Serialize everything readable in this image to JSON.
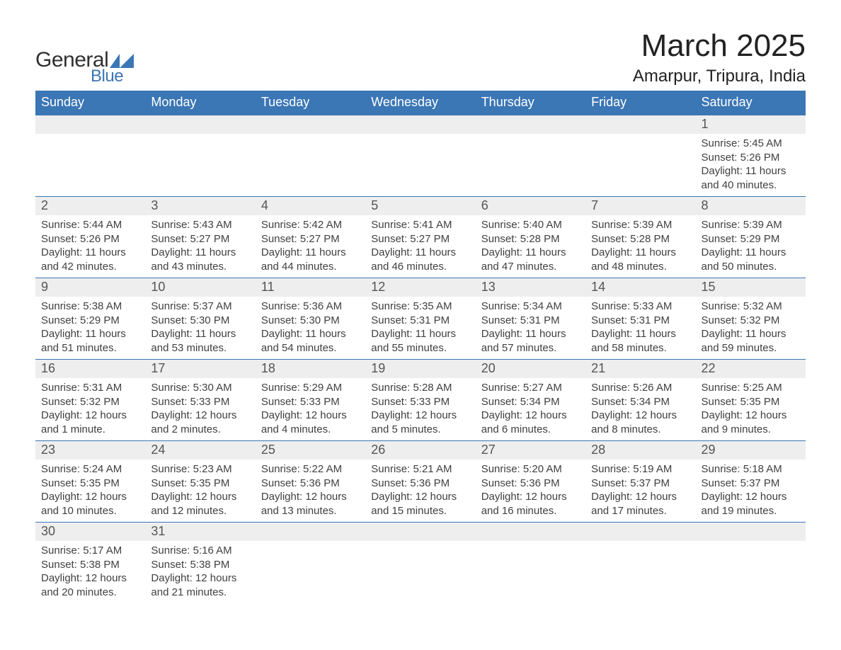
{
  "logo": {
    "text_general": "General",
    "text_blue": "Blue",
    "mark_color": "#3b76b5"
  },
  "title": {
    "month": "March 2025",
    "location": "Amarpur, Tripura, India"
  },
  "colors": {
    "header_bg": "#3b76b5",
    "header_text": "#ffffff",
    "daynum_bg": "#eeeeee",
    "daynum_text": "#555555",
    "body_text": "#404040",
    "row_border": "#3b76b5"
  },
  "day_headers": [
    "Sunday",
    "Monday",
    "Tuesday",
    "Wednesday",
    "Thursday",
    "Friday",
    "Saturday"
  ],
  "weeks": [
    [
      {
        "blank": true
      },
      {
        "blank": true
      },
      {
        "blank": true
      },
      {
        "blank": true
      },
      {
        "blank": true
      },
      {
        "blank": true
      },
      {
        "day": "1",
        "sunrise": "Sunrise: 5:45 AM",
        "sunset": "Sunset: 5:26 PM",
        "daylight1": "Daylight: 11 hours",
        "daylight2": "and 40 minutes."
      }
    ],
    [
      {
        "day": "2",
        "sunrise": "Sunrise: 5:44 AM",
        "sunset": "Sunset: 5:26 PM",
        "daylight1": "Daylight: 11 hours",
        "daylight2": "and 42 minutes."
      },
      {
        "day": "3",
        "sunrise": "Sunrise: 5:43 AM",
        "sunset": "Sunset: 5:27 PM",
        "daylight1": "Daylight: 11 hours",
        "daylight2": "and 43 minutes."
      },
      {
        "day": "4",
        "sunrise": "Sunrise: 5:42 AM",
        "sunset": "Sunset: 5:27 PM",
        "daylight1": "Daylight: 11 hours",
        "daylight2": "and 44 minutes."
      },
      {
        "day": "5",
        "sunrise": "Sunrise: 5:41 AM",
        "sunset": "Sunset: 5:27 PM",
        "daylight1": "Daylight: 11 hours",
        "daylight2": "and 46 minutes."
      },
      {
        "day": "6",
        "sunrise": "Sunrise: 5:40 AM",
        "sunset": "Sunset: 5:28 PM",
        "daylight1": "Daylight: 11 hours",
        "daylight2": "and 47 minutes."
      },
      {
        "day": "7",
        "sunrise": "Sunrise: 5:39 AM",
        "sunset": "Sunset: 5:28 PM",
        "daylight1": "Daylight: 11 hours",
        "daylight2": "and 48 minutes."
      },
      {
        "day": "8",
        "sunrise": "Sunrise: 5:39 AM",
        "sunset": "Sunset: 5:29 PM",
        "daylight1": "Daylight: 11 hours",
        "daylight2": "and 50 minutes."
      }
    ],
    [
      {
        "day": "9",
        "sunrise": "Sunrise: 5:38 AM",
        "sunset": "Sunset: 5:29 PM",
        "daylight1": "Daylight: 11 hours",
        "daylight2": "and 51 minutes."
      },
      {
        "day": "10",
        "sunrise": "Sunrise: 5:37 AM",
        "sunset": "Sunset: 5:30 PM",
        "daylight1": "Daylight: 11 hours",
        "daylight2": "and 53 minutes."
      },
      {
        "day": "11",
        "sunrise": "Sunrise: 5:36 AM",
        "sunset": "Sunset: 5:30 PM",
        "daylight1": "Daylight: 11 hours",
        "daylight2": "and 54 minutes."
      },
      {
        "day": "12",
        "sunrise": "Sunrise: 5:35 AM",
        "sunset": "Sunset: 5:31 PM",
        "daylight1": "Daylight: 11 hours",
        "daylight2": "and 55 minutes."
      },
      {
        "day": "13",
        "sunrise": "Sunrise: 5:34 AM",
        "sunset": "Sunset: 5:31 PM",
        "daylight1": "Daylight: 11 hours",
        "daylight2": "and 57 minutes."
      },
      {
        "day": "14",
        "sunrise": "Sunrise: 5:33 AM",
        "sunset": "Sunset: 5:31 PM",
        "daylight1": "Daylight: 11 hours",
        "daylight2": "and 58 minutes."
      },
      {
        "day": "15",
        "sunrise": "Sunrise: 5:32 AM",
        "sunset": "Sunset: 5:32 PM",
        "daylight1": "Daylight: 11 hours",
        "daylight2": "and 59 minutes."
      }
    ],
    [
      {
        "day": "16",
        "sunrise": "Sunrise: 5:31 AM",
        "sunset": "Sunset: 5:32 PM",
        "daylight1": "Daylight: 12 hours",
        "daylight2": "and 1 minute."
      },
      {
        "day": "17",
        "sunrise": "Sunrise: 5:30 AM",
        "sunset": "Sunset: 5:33 PM",
        "daylight1": "Daylight: 12 hours",
        "daylight2": "and 2 minutes."
      },
      {
        "day": "18",
        "sunrise": "Sunrise: 5:29 AM",
        "sunset": "Sunset: 5:33 PM",
        "daylight1": "Daylight: 12 hours",
        "daylight2": "and 4 minutes."
      },
      {
        "day": "19",
        "sunrise": "Sunrise: 5:28 AM",
        "sunset": "Sunset: 5:33 PM",
        "daylight1": "Daylight: 12 hours",
        "daylight2": "and 5 minutes."
      },
      {
        "day": "20",
        "sunrise": "Sunrise: 5:27 AM",
        "sunset": "Sunset: 5:34 PM",
        "daylight1": "Daylight: 12 hours",
        "daylight2": "and 6 minutes."
      },
      {
        "day": "21",
        "sunrise": "Sunrise: 5:26 AM",
        "sunset": "Sunset: 5:34 PM",
        "daylight1": "Daylight: 12 hours",
        "daylight2": "and 8 minutes."
      },
      {
        "day": "22",
        "sunrise": "Sunrise: 5:25 AM",
        "sunset": "Sunset: 5:35 PM",
        "daylight1": "Daylight: 12 hours",
        "daylight2": "and 9 minutes."
      }
    ],
    [
      {
        "day": "23",
        "sunrise": "Sunrise: 5:24 AM",
        "sunset": "Sunset: 5:35 PM",
        "daylight1": "Daylight: 12 hours",
        "daylight2": "and 10 minutes."
      },
      {
        "day": "24",
        "sunrise": "Sunrise: 5:23 AM",
        "sunset": "Sunset: 5:35 PM",
        "daylight1": "Daylight: 12 hours",
        "daylight2": "and 12 minutes."
      },
      {
        "day": "25",
        "sunrise": "Sunrise: 5:22 AM",
        "sunset": "Sunset: 5:36 PM",
        "daylight1": "Daylight: 12 hours",
        "daylight2": "and 13 minutes."
      },
      {
        "day": "26",
        "sunrise": "Sunrise: 5:21 AM",
        "sunset": "Sunset: 5:36 PM",
        "daylight1": "Daylight: 12 hours",
        "daylight2": "and 15 minutes."
      },
      {
        "day": "27",
        "sunrise": "Sunrise: 5:20 AM",
        "sunset": "Sunset: 5:36 PM",
        "daylight1": "Daylight: 12 hours",
        "daylight2": "and 16 minutes."
      },
      {
        "day": "28",
        "sunrise": "Sunrise: 5:19 AM",
        "sunset": "Sunset: 5:37 PM",
        "daylight1": "Daylight: 12 hours",
        "daylight2": "and 17 minutes."
      },
      {
        "day": "29",
        "sunrise": "Sunrise: 5:18 AM",
        "sunset": "Sunset: 5:37 PM",
        "daylight1": "Daylight: 12 hours",
        "daylight2": "and 19 minutes."
      }
    ],
    [
      {
        "day": "30",
        "sunrise": "Sunrise: 5:17 AM",
        "sunset": "Sunset: 5:38 PM",
        "daylight1": "Daylight: 12 hours",
        "daylight2": "and 20 minutes."
      },
      {
        "day": "31",
        "sunrise": "Sunrise: 5:16 AM",
        "sunset": "Sunset: 5:38 PM",
        "daylight1": "Daylight: 12 hours",
        "daylight2": "and 21 minutes."
      },
      {
        "blank": true
      },
      {
        "blank": true
      },
      {
        "blank": true
      },
      {
        "blank": true
      },
      {
        "blank": true
      }
    ]
  ]
}
